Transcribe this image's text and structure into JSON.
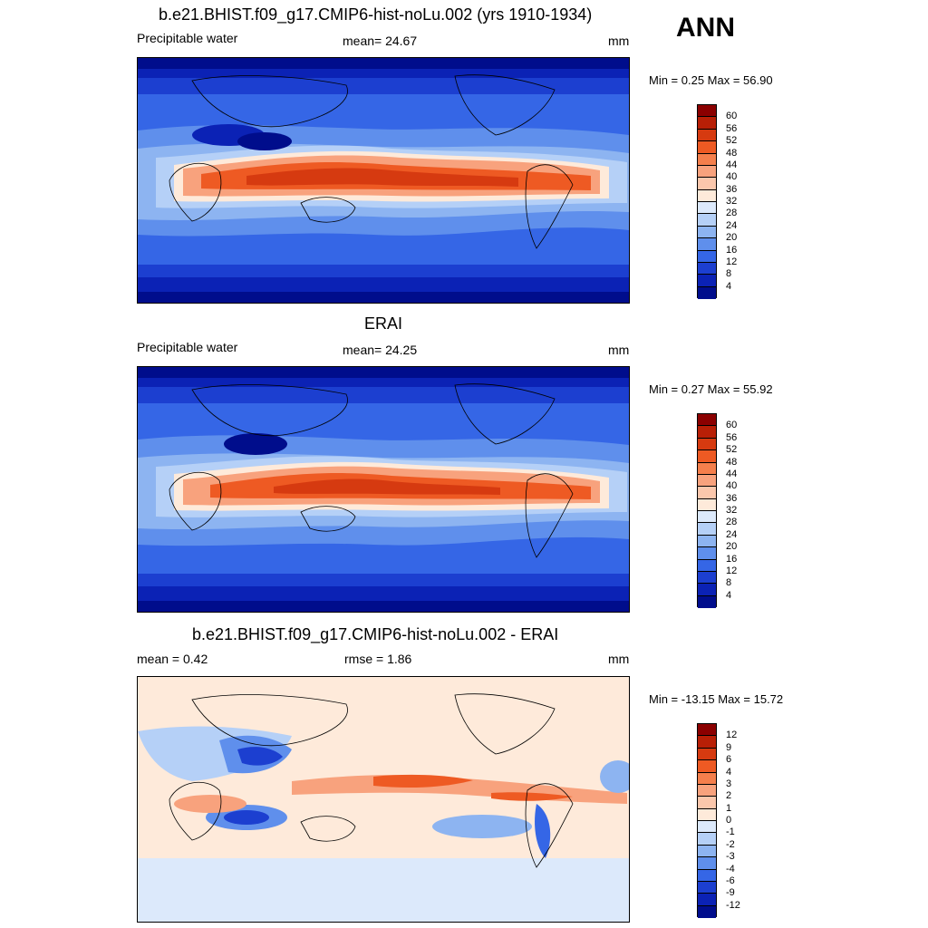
{
  "season": "ANN",
  "panels": [
    {
      "title": "b.e21.BHIST.f09_g17.CMIP6-hist-noLu.002 (yrs 1910-1934)",
      "left": "Precipitable water",
      "mid": "mean=  24.67",
      "right": "mm",
      "minmax": "Min =   0.25 Max =  56.90",
      "kind": "abs"
    },
    {
      "title": "ERAI",
      "left": "Precipitable water",
      "mid": "mean=  24.25",
      "right": "mm",
      "minmax": "Min =   0.27 Max =  55.92",
      "kind": "abs"
    },
    {
      "title": "b.e21.BHIST.f09_g17.CMIP6-hist-noLu.002 - ERAI",
      "left": "mean =   0.42",
      "mid": "rmse =   1.86",
      "right": "mm",
      "minmax": "Min = -13.15 Max =  15.72",
      "kind": "diff"
    }
  ],
  "colorbars": {
    "abs": {
      "labels": [
        "60",
        "56",
        "52",
        "48",
        "44",
        "40",
        "36",
        "32",
        "28",
        "24",
        "20",
        "16",
        "12",
        "8",
        "4"
      ],
      "colors": [
        "#8b0000",
        "#b81f06",
        "#d63a10",
        "#ee5a23",
        "#f57f4c",
        "#f8a27d",
        "#fbc7ac",
        "#feeada",
        "#dce9fb",
        "#b5d0f7",
        "#8db4f1",
        "#5f8fec",
        "#3566e6",
        "#1c3fd0",
        "#0b22b5",
        "#000d8c"
      ]
    },
    "diff": {
      "labels": [
        "12",
        "9",
        "6",
        "4",
        "3",
        "2",
        "1",
        "0",
        "-1",
        "-2",
        "-3",
        "-4",
        "-6",
        "-9",
        "-12"
      ],
      "colors": [
        "#8b0000",
        "#b81f06",
        "#d63a10",
        "#ee5a23",
        "#f57f4c",
        "#f8a27d",
        "#fbc7ac",
        "#feeada",
        "#dce9fb",
        "#b5d0f7",
        "#8db4f1",
        "#5f8fec",
        "#3566e6",
        "#1c3fd0",
        "#0b22b5",
        "#000d8c"
      ]
    }
  }
}
